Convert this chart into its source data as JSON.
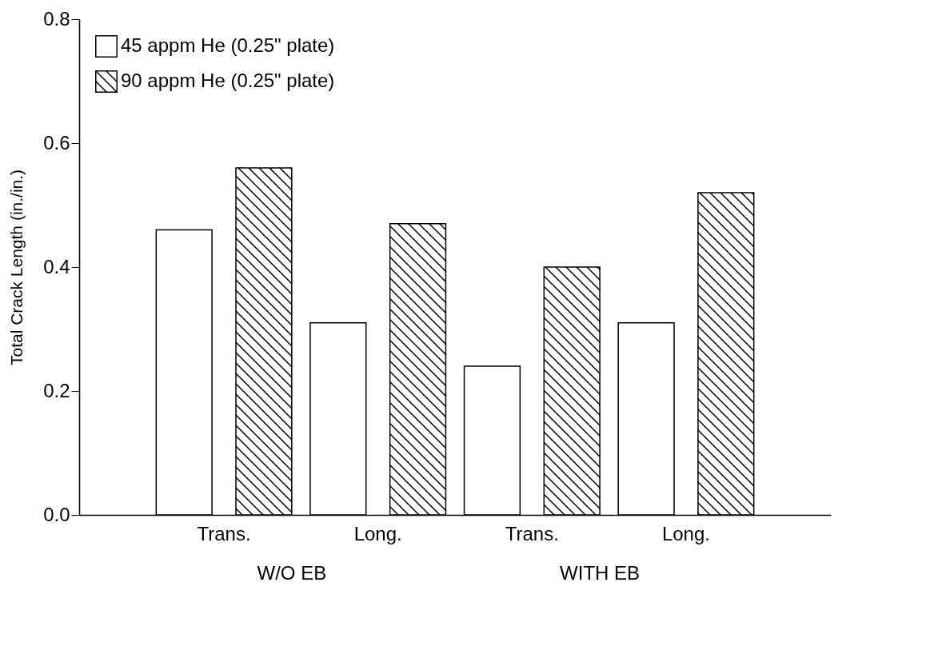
{
  "chart_data": {
    "type": "bar",
    "ylabel": "Total Crack Length (in./in.)",
    "categories": [
      "Trans.",
      "Long.",
      "Trans.",
      "Long."
    ],
    "series": [
      {
        "name": "45 appm He (0.25\" plate)",
        "color": "#ffffff",
        "values": [
          0.46,
          0.31,
          0.24,
          0.31
        ]
      },
      {
        "name": "90 appm He (0.25\" plate)",
        "color": "#000000",
        "values": [
          0.56,
          0.47,
          0.4,
          0.52
        ]
      }
    ],
    "annotations": [
      "W/O EB",
      "WITH EB"
    ],
    "ylim": [
      0,
      0.8
    ],
    "yticks": [
      {
        "value": 0,
        "label": "0.0"
      },
      {
        "value": 0.2,
        "label": "0.2"
      },
      {
        "value": 0.4,
        "label": "0.4"
      },
      {
        "value": 0.6,
        "label": "0.6"
      },
      {
        "value": 0.8,
        "label": "0.8"
      }
    ],
    "legend": "top left",
    "grid": false
  }
}
